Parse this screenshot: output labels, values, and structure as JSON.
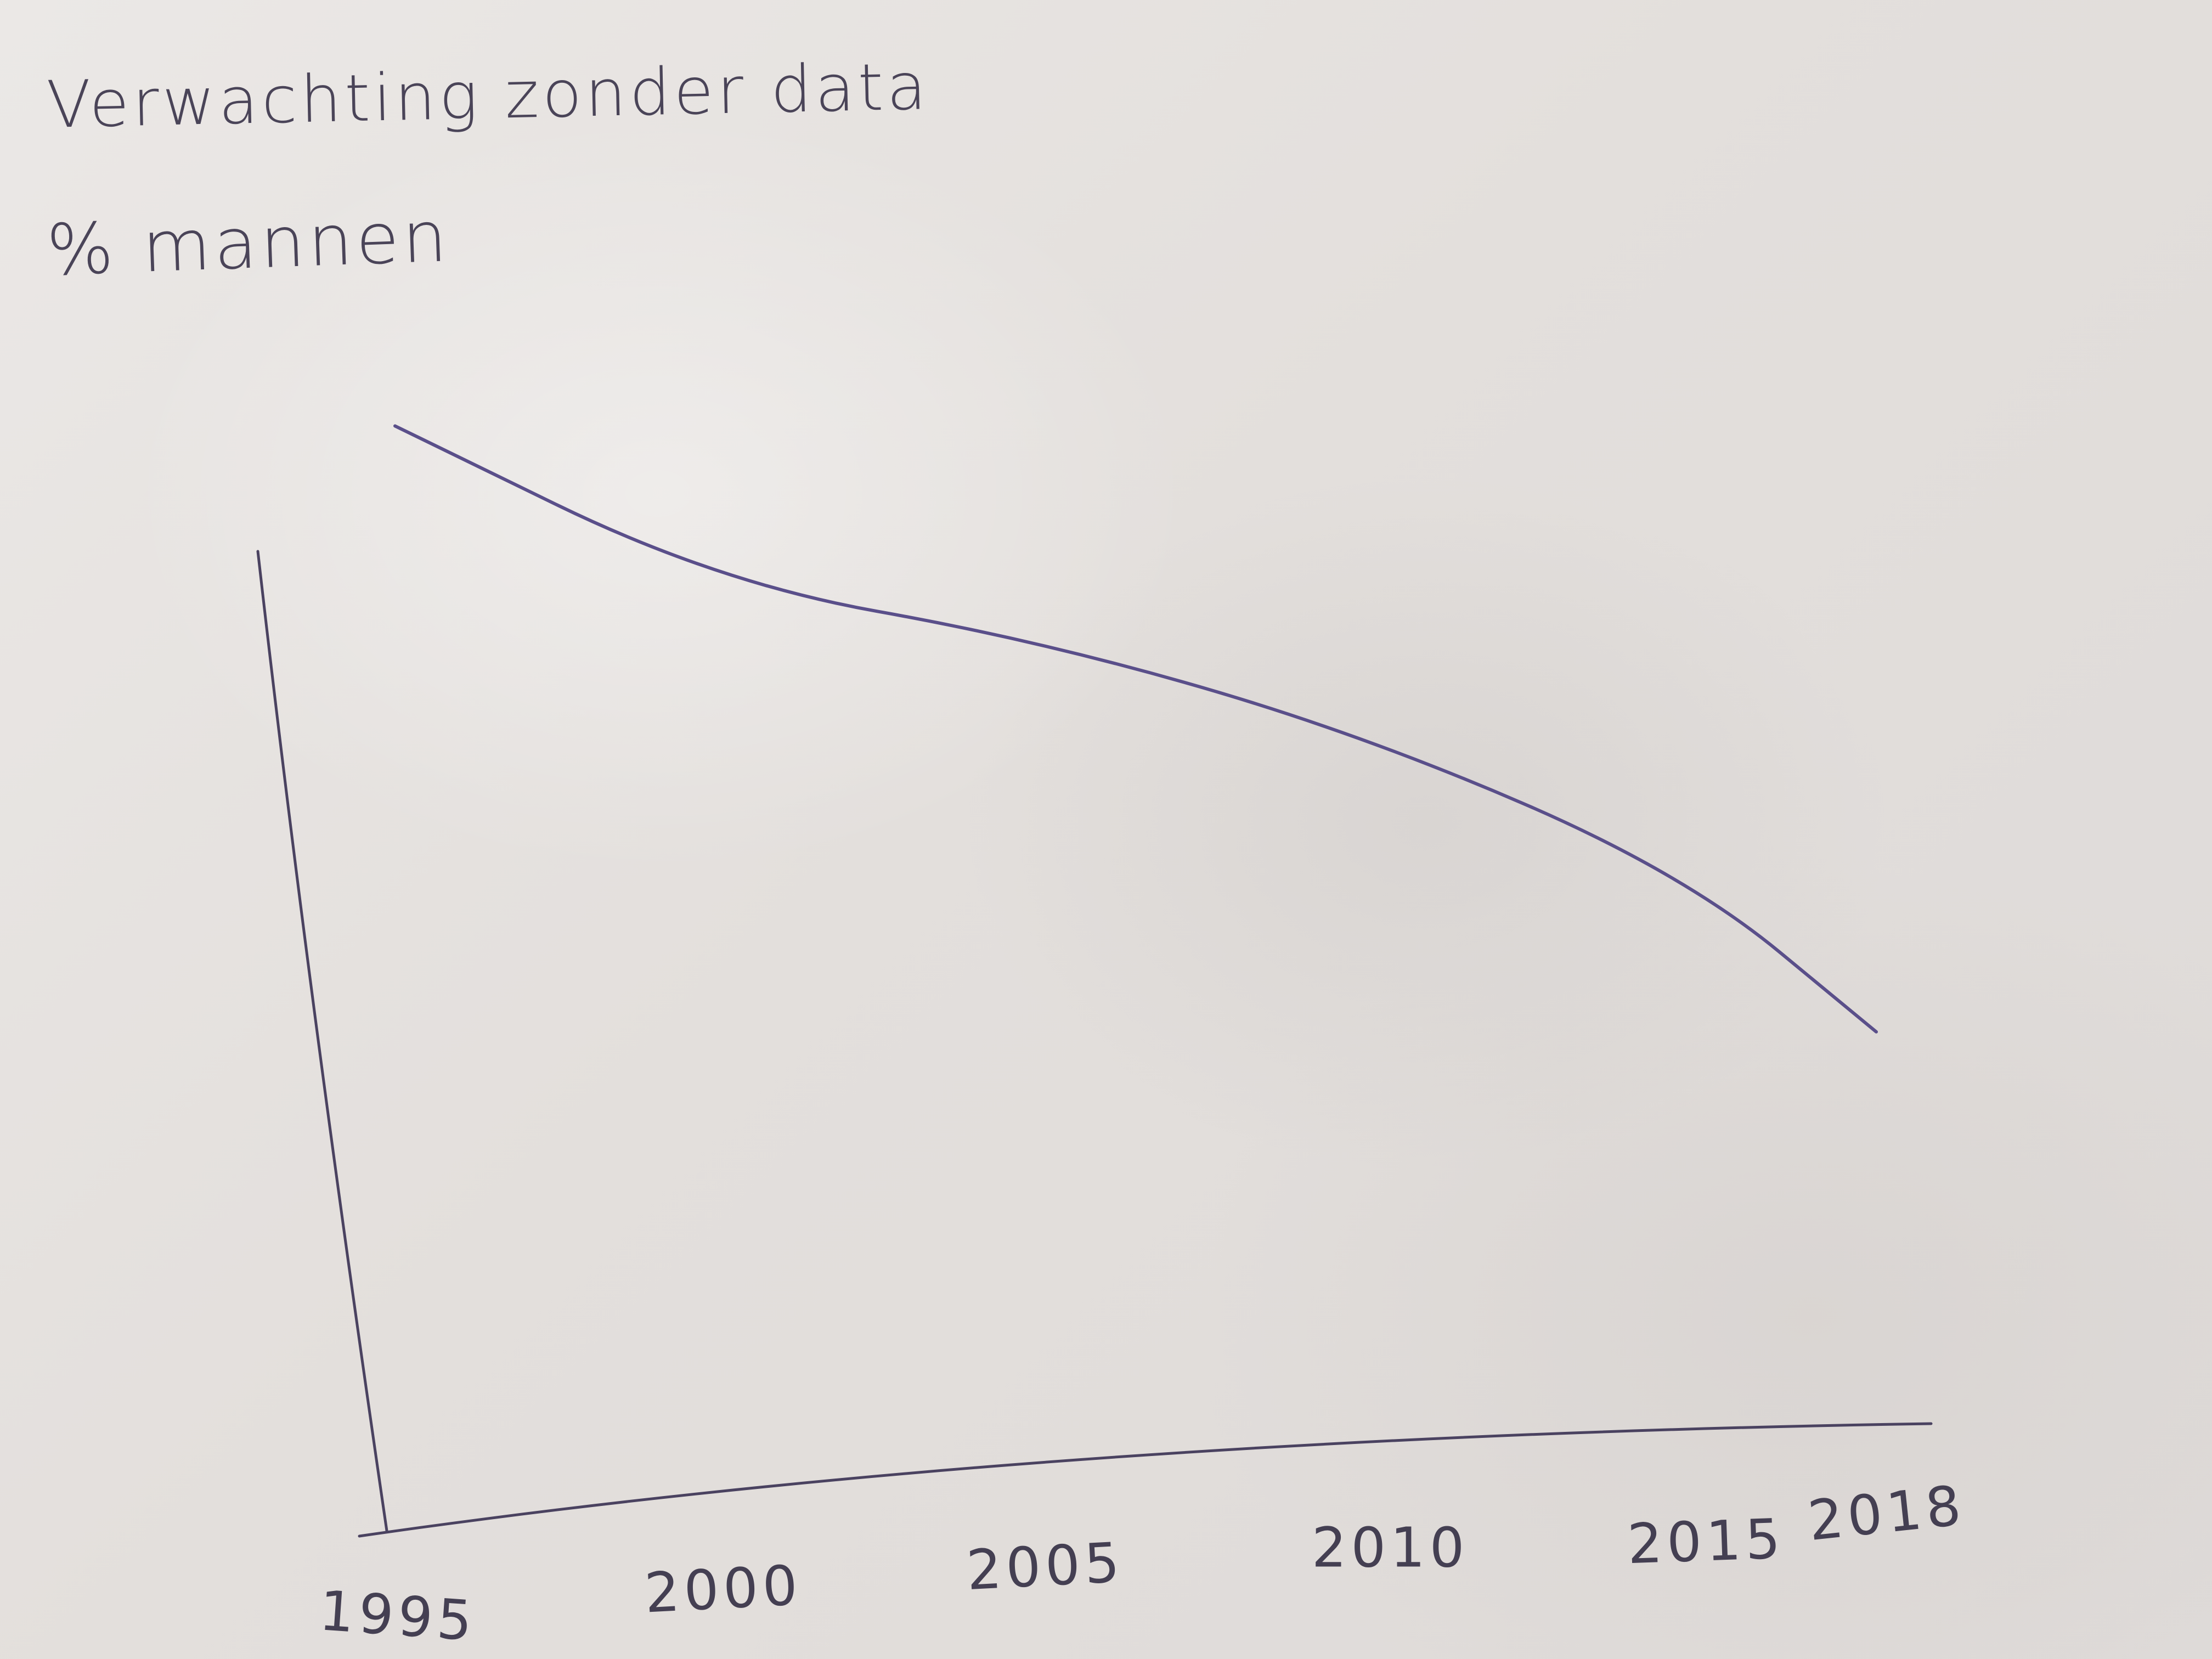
{
  "chart_data": {
    "type": "line",
    "title": "Verwachting zonder data",
    "ylabel": "% mannen",
    "xlabel": "",
    "x": [
      1995,
      2000,
      2005,
      2010,
      2015,
      2018
    ],
    "tick_labels": [
      "1995",
      "2000",
      "2005",
      "2010",
      "2015",
      "2018"
    ],
    "series": [
      {
        "values": [
          60,
          51,
          47.5,
          42,
          34,
          25
        ]
      }
    ],
    "xlim": [
      1995,
      2018
    ],
    "ylim": [
      0,
      100
    ],
    "grid": false,
    "line_color": "#5a4f8a",
    "axis_color": "#4a4260"
  }
}
